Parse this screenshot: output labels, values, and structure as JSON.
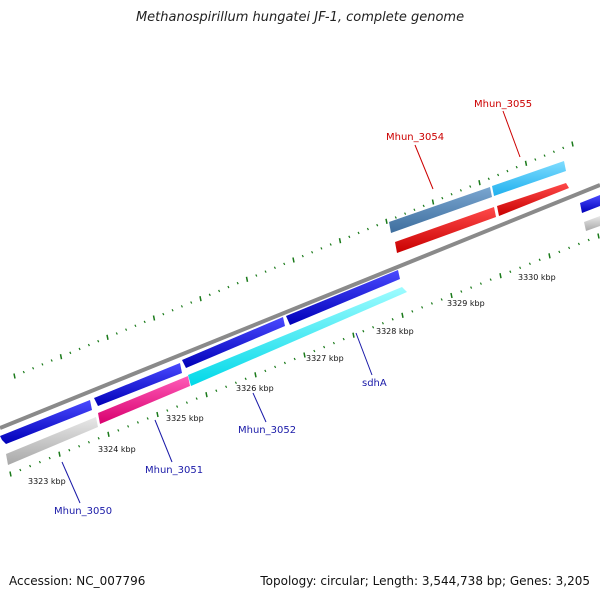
{
  "title": "Methanospirillum hungatei JF-1, complete genome",
  "footer": {
    "accession": "Accession: NC_007796",
    "stats": "Topology: circular; Length: 3,544,738 bp; Genes: 3,205"
  },
  "colors": {
    "backbone": "#8a8a8a",
    "tick_major": "#1a7a1a",
    "tick_minor": "#1a7a1a",
    "label_blue": "#1a1aa8",
    "label_red": "#cc0000"
  },
  "ticks": [
    "3323 kbp",
    "3324 kbp",
    "3325 kbp",
    "3326 kbp",
    "3327 kbp",
    "3328 kbp",
    "3329 kbp",
    "3330 kbp"
  ],
  "labels": [
    {
      "id": "Mhun_3050",
      "text": "Mhun_3050",
      "color": "#1a1aa8"
    },
    {
      "id": "Mhun_3051",
      "text": "Mhun_3051",
      "color": "#1a1aa8"
    },
    {
      "id": "Mhun_3052",
      "text": "Mhun_3052",
      "color": "#1a1aa8"
    },
    {
      "id": "sdhA",
      "text": "sdhA",
      "color": "#1a1aa8"
    },
    {
      "id": "Mhun_3054",
      "text": "Mhun_3054",
      "color": "#cc0000"
    },
    {
      "id": "Mhun_3055",
      "text": "Mhun_3055",
      "color": "#cc0000"
    }
  ]
}
